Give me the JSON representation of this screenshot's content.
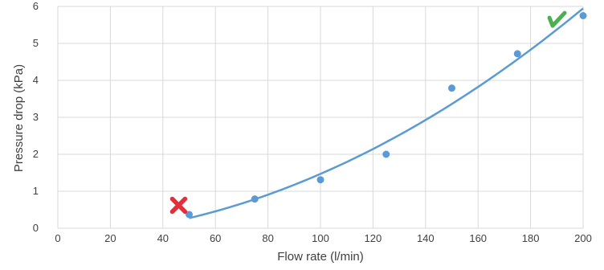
{
  "chart_data": {
    "type": "scatter",
    "title": "",
    "xlabel": "Flow rate (l/min)",
    "ylabel": "Pressure drop (kPa)",
    "xlim": [
      0,
      200
    ],
    "ylim": [
      0,
      6
    ],
    "x_ticks": [
      "0",
      "20",
      "40",
      "60",
      "80",
      "100",
      "120",
      "140",
      "160",
      "180",
      "200"
    ],
    "y_ticks": [
      "0",
      "1",
      "2",
      "3",
      "4",
      "5",
      "6"
    ],
    "grid": true,
    "legend": "none",
    "series": [
      {
        "x": [
          50,
          75,
          100,
          125,
          150,
          175,
          200
        ],
        "y": [
          0.37,
          0.79,
          1.31,
          2.0,
          3.79,
          4.72,
          5.75
        ],
        "color": "#5b9bd5",
        "marker": "circle",
        "trendline": "polynomial"
      }
    ],
    "annotations": [
      {
        "icon": "red-cross-icon",
        "x": 46,
        "y": 0.62,
        "color": "#e0303b"
      },
      {
        "icon": "green-check-icon",
        "x": 189,
        "y": 5.65,
        "color": "#4caf50"
      }
    ]
  }
}
